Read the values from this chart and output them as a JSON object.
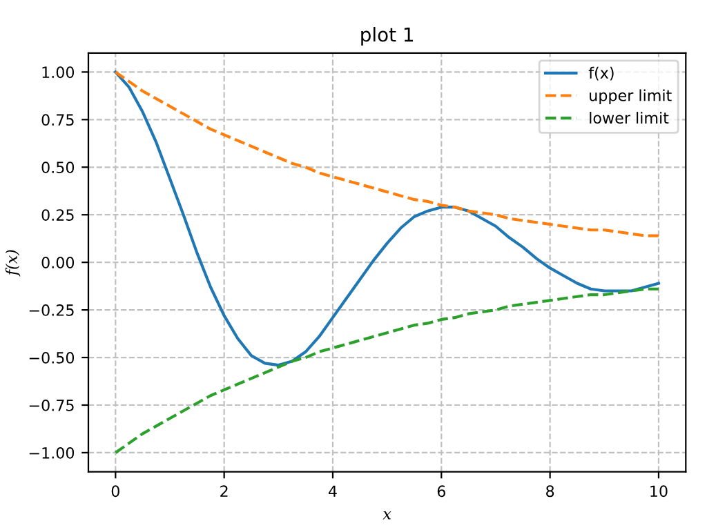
{
  "chart_data": {
    "type": "line",
    "title": "plot 1",
    "xlabel": "x",
    "ylabel": "f(x)",
    "x": [
      0,
      0.25,
      0.5,
      0.75,
      1,
      1.25,
      1.5,
      1.75,
      2,
      2.25,
      2.5,
      2.75,
      3,
      3.25,
      3.5,
      3.75,
      4,
      4.25,
      4.5,
      4.75,
      5,
      5.25,
      5.5,
      5.75,
      6,
      6.25,
      6.5,
      6.75,
      7,
      7.25,
      7.5,
      7.75,
      8,
      8.25,
      8.5,
      8.75,
      9,
      9.25,
      9.5,
      9.75,
      10
    ],
    "series": [
      {
        "name": "f(x)",
        "color": "#1f77b4",
        "line_style": "solid",
        "values": [
          1.0,
          0.92,
          0.79,
          0.63,
          0.44,
          0.25,
          0.05,
          -0.13,
          -0.28,
          -0.4,
          -0.49,
          -0.53,
          -0.54,
          -0.52,
          -0.47,
          -0.39,
          -0.29,
          -0.19,
          -0.09,
          0.01,
          0.1,
          0.18,
          0.24,
          0.27,
          0.29,
          0.29,
          0.27,
          0.23,
          0.19,
          0.13,
          0.08,
          0.02,
          -0.03,
          -0.07,
          -0.11,
          -0.14,
          -0.15,
          -0.15,
          -0.15,
          -0.13,
          -0.11
        ]
      },
      {
        "name": "upper limit",
        "color": "#ff7f0e",
        "line_style": "dashed",
        "values": [
          1.0,
          0.95,
          0.9,
          0.86,
          0.82,
          0.78,
          0.74,
          0.7,
          0.67,
          0.64,
          0.61,
          0.58,
          0.55,
          0.52,
          0.5,
          0.47,
          0.45,
          0.43,
          0.41,
          0.39,
          0.37,
          0.35,
          0.33,
          0.32,
          0.3,
          0.29,
          0.27,
          0.26,
          0.25,
          0.23,
          0.22,
          0.21,
          0.2,
          0.19,
          0.18,
          0.17,
          0.17,
          0.16,
          0.15,
          0.14,
          0.14
        ]
      },
      {
        "name": "lower limit",
        "color": "#2ca02c",
        "line_style": "dashed",
        "values": [
          -1.0,
          -0.95,
          -0.9,
          -0.86,
          -0.82,
          -0.78,
          -0.74,
          -0.7,
          -0.67,
          -0.64,
          -0.61,
          -0.58,
          -0.55,
          -0.52,
          -0.5,
          -0.47,
          -0.45,
          -0.43,
          -0.41,
          -0.39,
          -0.37,
          -0.35,
          -0.33,
          -0.32,
          -0.3,
          -0.29,
          -0.27,
          -0.26,
          -0.25,
          -0.23,
          -0.22,
          -0.21,
          -0.2,
          -0.19,
          -0.18,
          -0.17,
          -0.17,
          -0.16,
          -0.15,
          -0.14,
          -0.14
        ]
      }
    ],
    "xlim": [
      -0.5,
      10.5
    ],
    "ylim": [
      -1.1,
      1.1
    ],
    "xticks": [
      0,
      2,
      4,
      6,
      8,
      10
    ],
    "yticks": [
      {
        "value": -1,
        "label": "−1.00"
      },
      {
        "value": -0.75,
        "label": "−0.75"
      },
      {
        "value": -0.5,
        "label": "−0.50"
      },
      {
        "value": -0.25,
        "label": "−0.25"
      },
      {
        "value": 0,
        "label": "0.00"
      },
      {
        "value": 0.25,
        "label": "0.25"
      },
      {
        "value": 0.5,
        "label": "0.50"
      },
      {
        "value": 0.75,
        "label": "0.75"
      },
      {
        "value": 1,
        "label": "1.00"
      }
    ],
    "grid": true,
    "legend": "top right",
    "marker": "none"
  }
}
